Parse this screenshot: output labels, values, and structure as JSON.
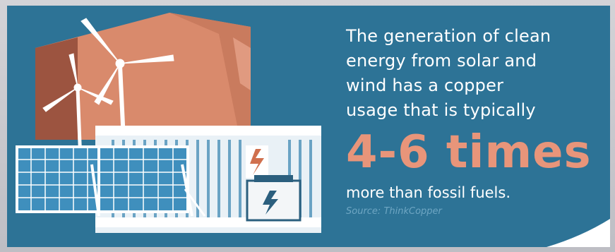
{
  "headline": {
    "lead": "The generation of clean\nenergy from solar and\nwind has a copper\nusage that is typically",
    "highlight": "4-6 times",
    "tail": "more than fossil fuels."
  },
  "source": "Source: ThinkCopper",
  "colors": {
    "panel_bg": "#2d7396",
    "highlight": "#e8957a",
    "copper_block": "#d98a6c",
    "white": "#ffffff"
  },
  "icons": [
    "wind-turbine-icon",
    "solar-panel-icon",
    "lightning-bolt-icon",
    "copper-block-icon",
    "battery-container-icon"
  ]
}
